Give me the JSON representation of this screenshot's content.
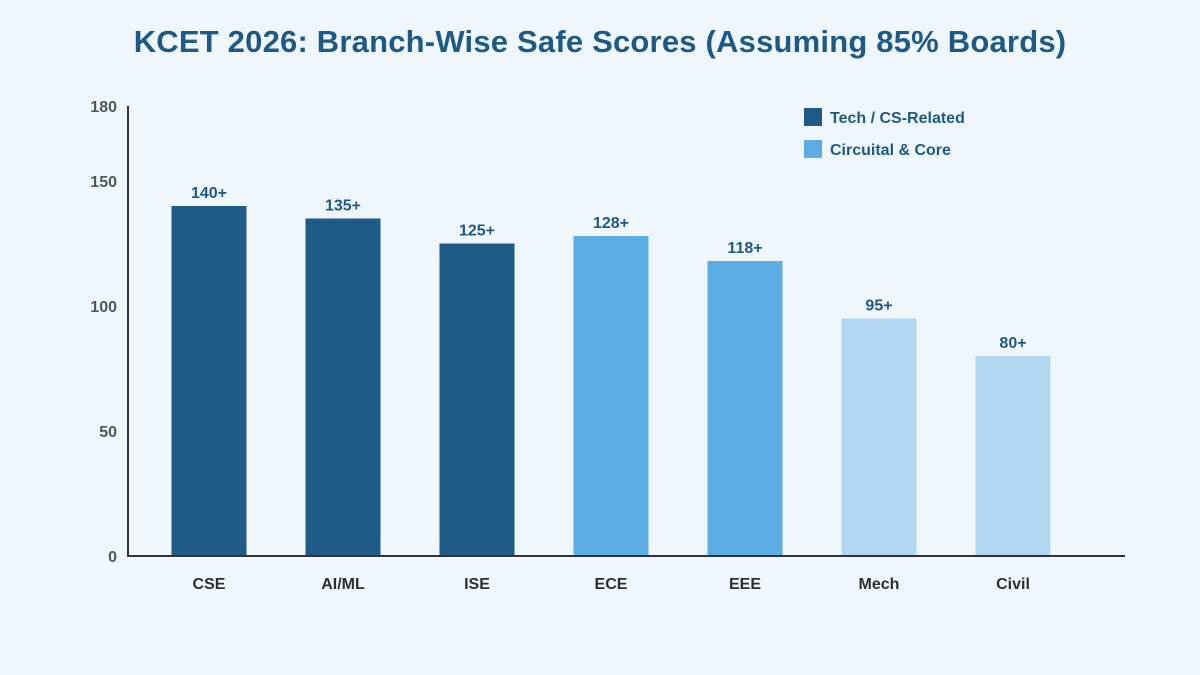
{
  "chart_data": {
    "type": "bar",
    "title": "KCET 2026: Branch-Wise Safe Scores (Assuming 85% Boards)",
    "xlabel": "",
    "ylabel": "",
    "ylim": [
      0,
      180
    ],
    "yticks": [
      0,
      50,
      100,
      150,
      180
    ],
    "categories": [
      "CSE",
      "AI/ML",
      "ISE",
      "ECE",
      "EEE",
      "Mech",
      "Civil"
    ],
    "values": [
      140,
      135,
      125,
      128,
      118,
      95,
      80
    ],
    "data_labels": [
      "140+",
      "135+",
      "125+",
      "128+",
      "118+",
      "95+",
      "80+"
    ],
    "groups": [
      "tech",
      "tech",
      "tech",
      "circuital",
      "circuital",
      "core_light",
      "core_light"
    ],
    "colors": {
      "tech": "#1e5b86",
      "circuital": "#5cade3",
      "core_light": "#b1d7f1",
      "axis": "#333333"
    },
    "legend": {
      "placement": "top-right",
      "items": [
        {
          "label": "Tech / CS-Related",
          "color": "#1e5b86"
        },
        {
          "label": "Circuital & Core",
          "color": "#5cade3"
        }
      ]
    },
    "grid": false
  }
}
